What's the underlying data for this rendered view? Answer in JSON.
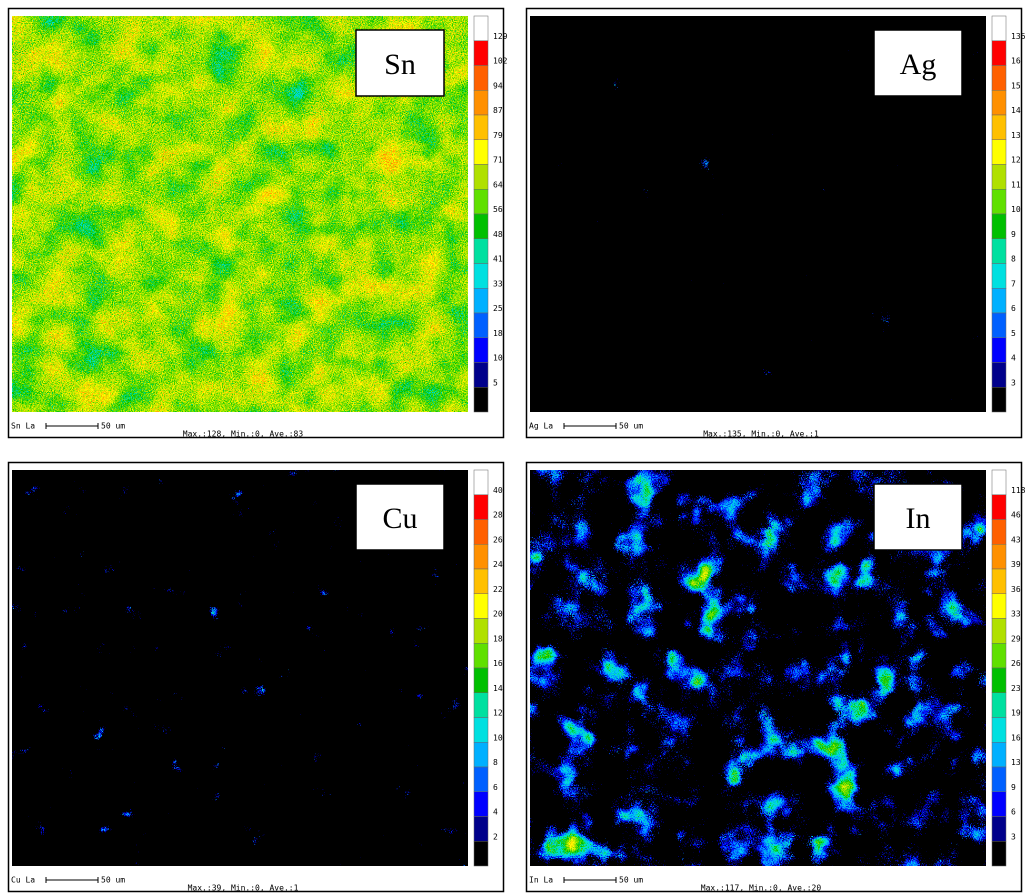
{
  "panels": [
    {
      "element": "Sn",
      "scale": [
        129,
        102,
        94,
        87,
        79,
        71,
        64,
        56,
        48,
        41,
        33,
        25,
        18,
        10,
        5
      ],
      "line": "Sn La",
      "bar": "50 um",
      "stats": "Max.:128, Min.:0, Ave.:83"
    },
    {
      "element": "Ag",
      "scale": [
        136,
        16,
        15,
        14,
        13,
        12,
        11,
        10,
        9,
        8,
        7,
        6,
        5,
        4,
        3
      ],
      "line": "Ag La",
      "bar": "50 um",
      "stats": "Max.:135, Min.:0, Ave.:1"
    },
    {
      "element": "Cu",
      "scale": [
        40,
        28,
        26,
        24,
        22,
        20,
        18,
        16,
        14,
        12,
        10,
        8,
        6,
        4,
        2
      ],
      "line": "Cu La",
      "bar": "50 um",
      "stats": "Max.:39, Min.:0, Ave.:1"
    },
    {
      "element": "In",
      "scale": [
        118,
        46,
        43,
        39,
        36,
        33,
        29,
        26,
        23,
        19,
        16,
        13,
        9,
        6,
        3
      ],
      "line": "In La",
      "bar": "50 um",
      "stats": "Max.:117, Min.:0, Ave.:20"
    }
  ]
}
